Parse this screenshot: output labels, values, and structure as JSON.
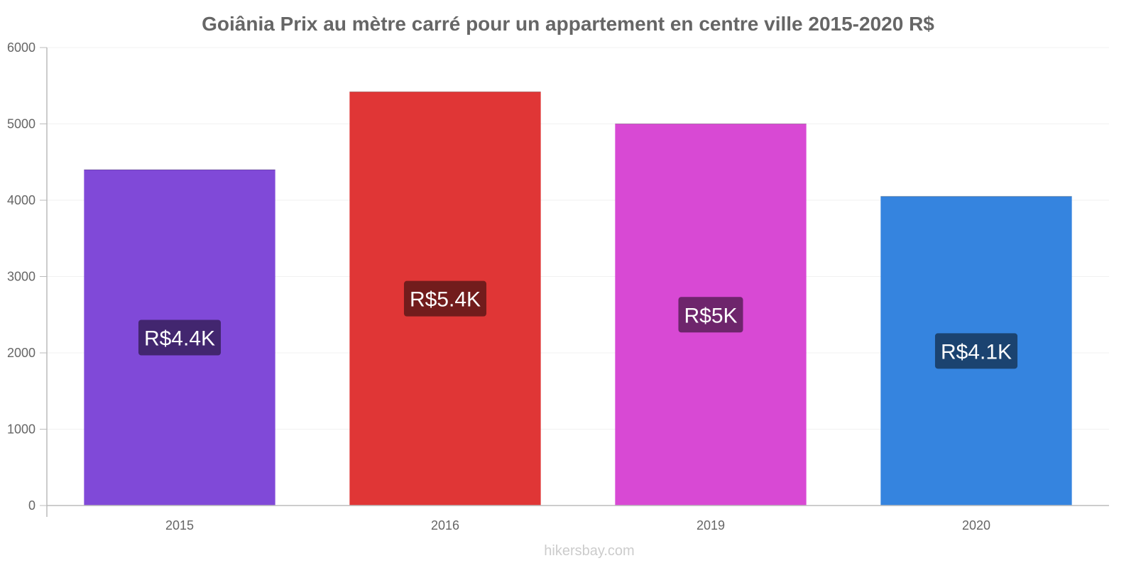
{
  "chart_data": {
    "type": "bar",
    "title": "Goiânia Prix au mètre carré pour un appartement en centre ville 2015-2020 R$",
    "xlabel": "",
    "ylabel": "",
    "categories": [
      "2015",
      "2016",
      "2019",
      "2020"
    ],
    "values": [
      4400,
      5420,
      5000,
      4050
    ],
    "data_labels": [
      "R$4.4K",
      "R$5.4K",
      "R$5K",
      "R$4.1K"
    ],
    "colors": [
      "#8049d8",
      "#e03636",
      "#d849d4",
      "#3584df"
    ],
    "label_bg_colors": [
      "#42266f",
      "#721c1c",
      "#6e256c",
      "#1b4370"
    ],
    "ylim": [
      0,
      6000
    ],
    "yticks": [
      "0",
      "1000",
      "2000",
      "3000",
      "4000",
      "5000",
      "6000"
    ],
    "grid": true,
    "legend": "none"
  },
  "footer": {
    "source": "hikersbay.com"
  }
}
